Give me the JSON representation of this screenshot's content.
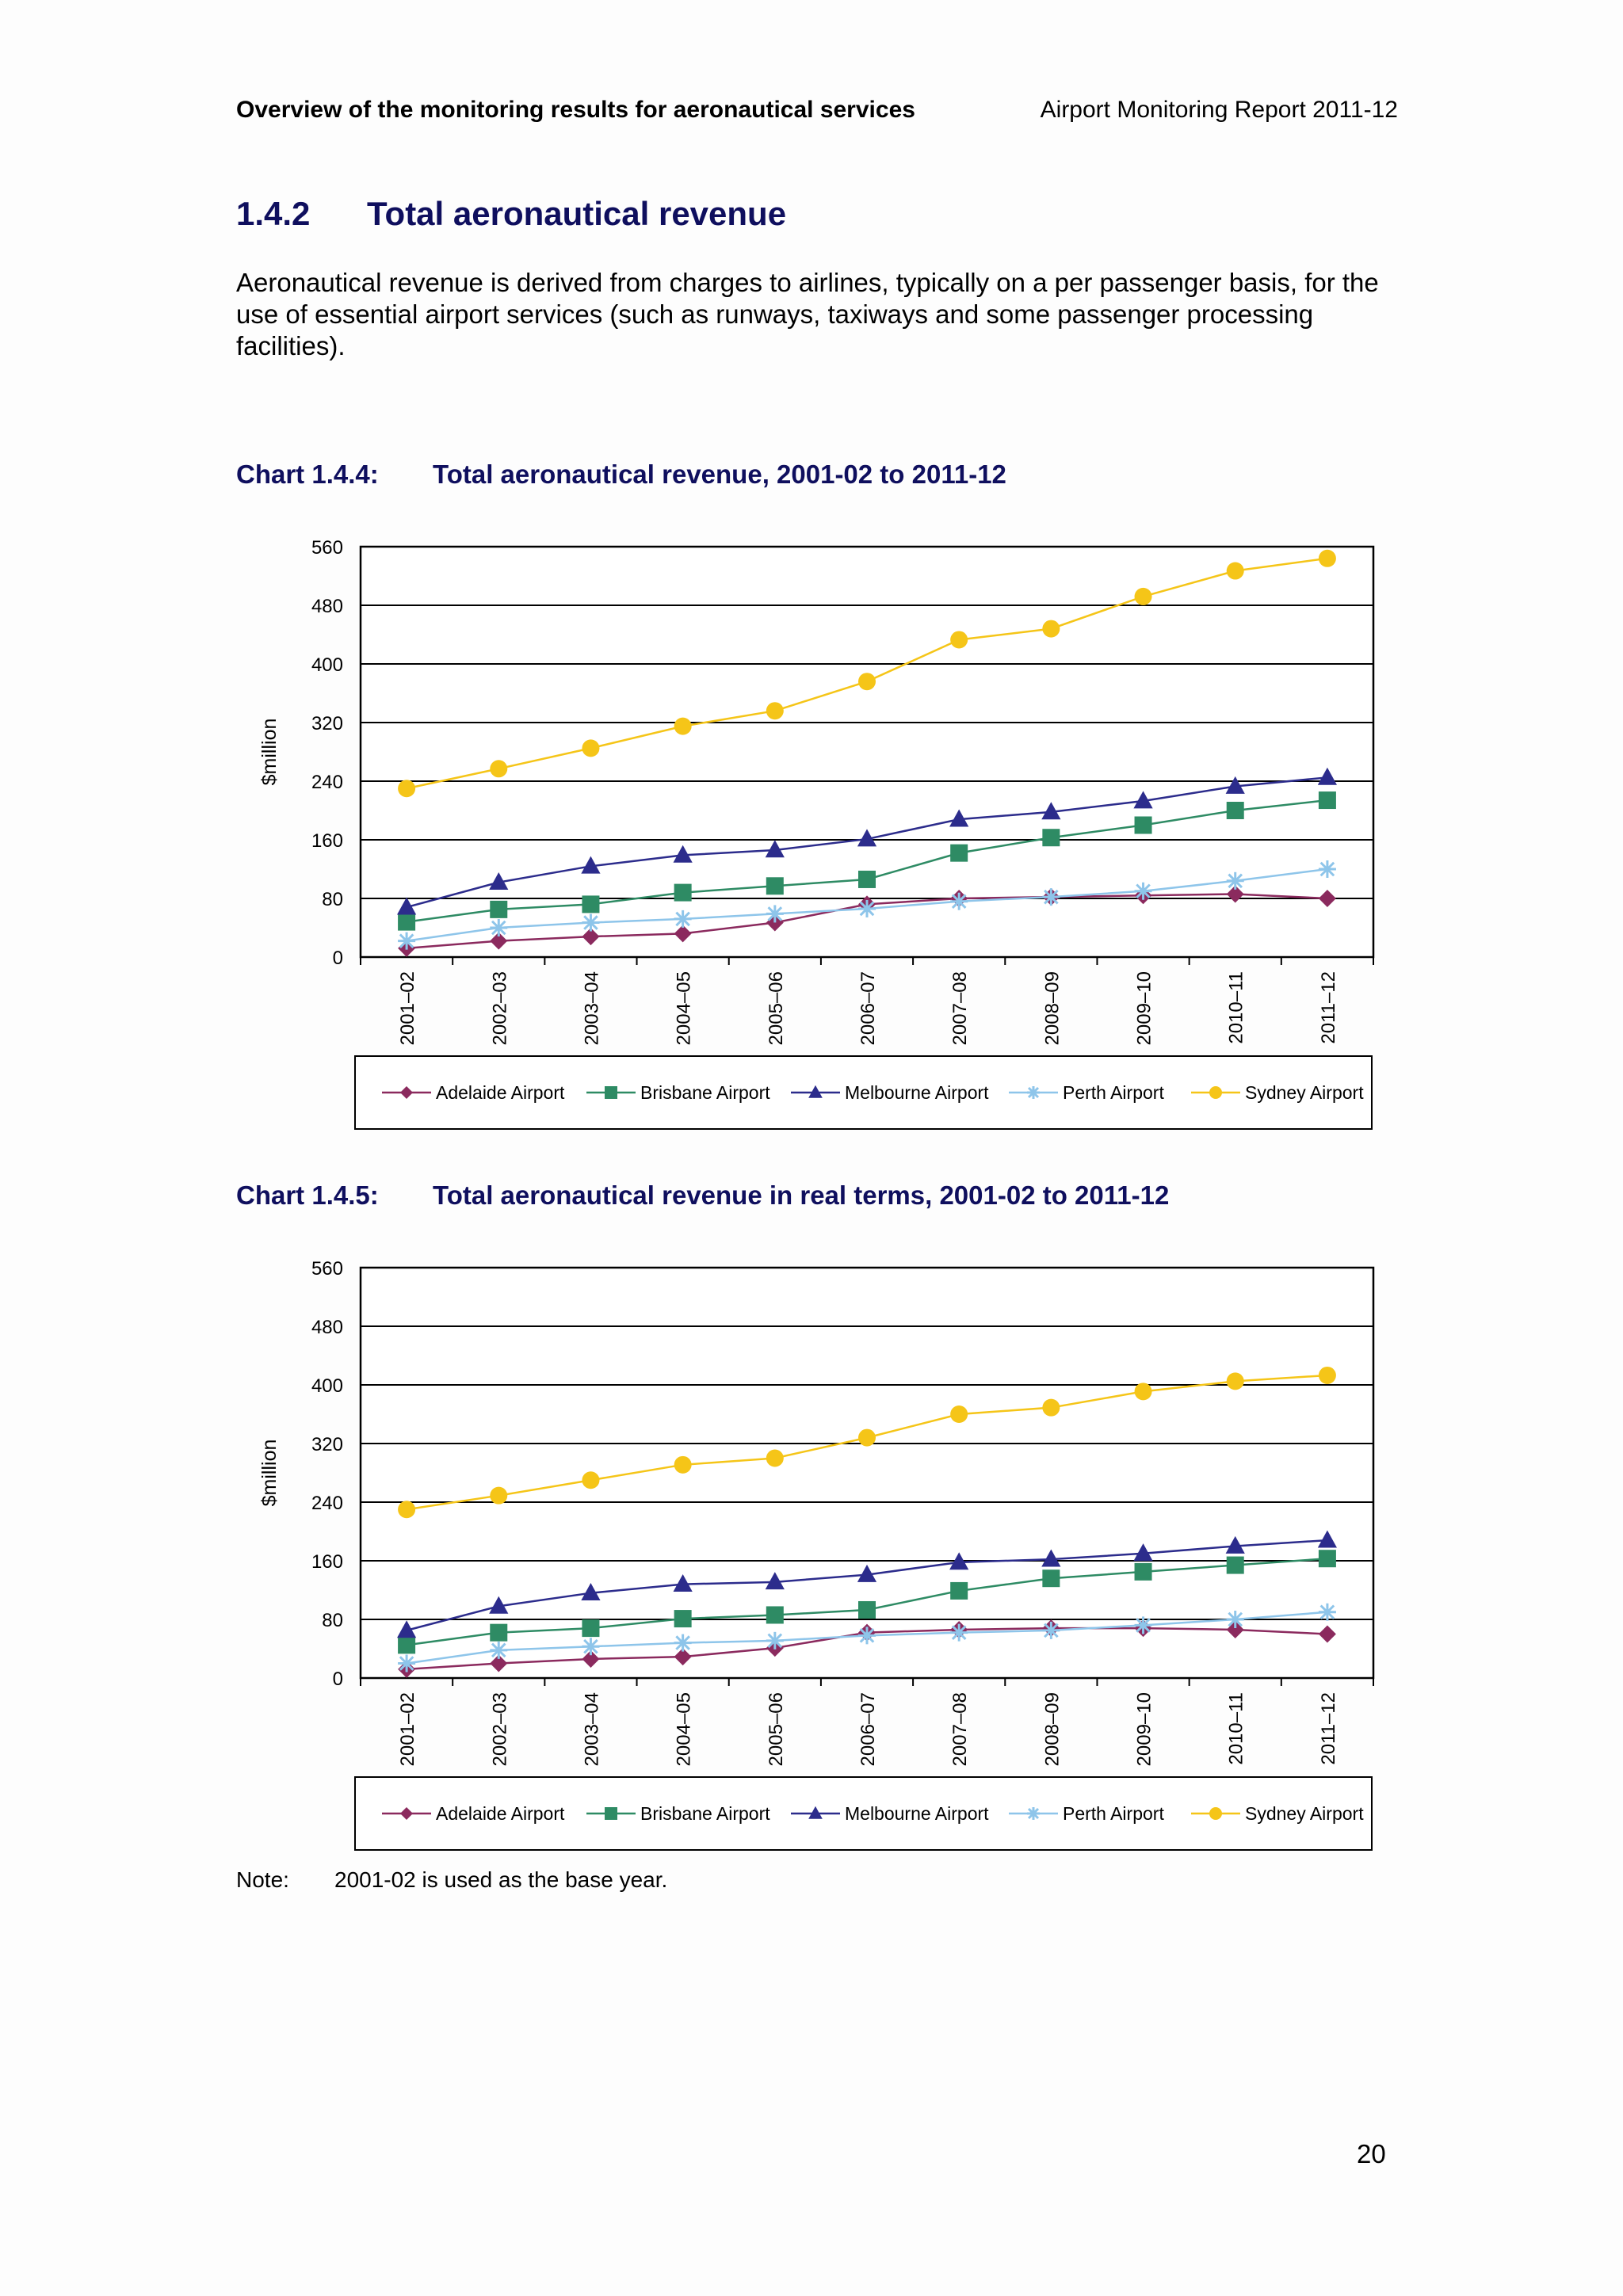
{
  "header": {
    "left": "Overview of the monitoring results for aeronautical services",
    "right": "Airport Monitoring Report 2011-12"
  },
  "section": {
    "number": "1.4.2",
    "title": "Total aeronautical revenue"
  },
  "intro": "Aeronautical revenue is derived from charges to airlines, typically on a per passenger basis, for the use of essential airport services (such as runways, taxiways and some passenger processing facilities).",
  "charts": [
    {
      "number": "Chart 1.4.4:",
      "title": "Total aeronautical revenue, 2001-02 to 2011-12"
    },
    {
      "number": "Chart 1.4.5:",
      "title": "Total aeronautical revenue in real terms, 2001-02 to 2011-12"
    }
  ],
  "note": {
    "label": "Note:",
    "text": "2001-02 is used as the base year."
  },
  "page_number": "20",
  "chart_data": [
    {
      "type": "line",
      "ylabel": "$million",
      "ylim": [
        0,
        560
      ],
      "yticks": [
        0,
        80,
        160,
        240,
        320,
        400,
        480,
        560
      ],
      "grid": true,
      "legend": "bottom",
      "categories": [
        "2001–02",
        "2002–03",
        "2003–04",
        "2004–05",
        "2005–06",
        "2006–07",
        "2007–08",
        "2008–09",
        "2009–10",
        "2010–11",
        "2011–12"
      ],
      "series": [
        {
          "name": "Adelaide Airport",
          "color": "#8b2a5e",
          "marker": "diamond",
          "values": [
            12,
            22,
            28,
            32,
            47,
            72,
            80,
            82,
            84,
            86,
            80
          ]
        },
        {
          "name": "Brisbane Airport",
          "color": "#2e8b64",
          "marker": "square",
          "values": [
            48,
            65,
            72,
            88,
            97,
            106,
            142,
            163,
            180,
            200,
            214
          ]
        },
        {
          "name": "Melbourne Airport",
          "color": "#2c2c8c",
          "marker": "triangle",
          "values": [
            68,
            102,
            124,
            139,
            146,
            161,
            188,
            198,
            213,
            233,
            245
          ]
        },
        {
          "name": "Perth Airport",
          "color": "#8ec5ea",
          "marker": "star",
          "values": [
            22,
            40,
            47,
            52,
            59,
            66,
            76,
            82,
            90,
            104,
            120
          ]
        },
        {
          "name": "Sydney Airport",
          "color": "#f5c518",
          "marker": "circle",
          "values": [
            230,
            257,
            285,
            315,
            336,
            376,
            433,
            448,
            492,
            527,
            544
          ]
        }
      ]
    },
    {
      "type": "line",
      "ylabel": "$million",
      "ylim": [
        0,
        560
      ],
      "yticks": [
        0,
        80,
        160,
        240,
        320,
        400,
        480,
        560
      ],
      "grid": true,
      "legend": "bottom",
      "categories": [
        "2001–02",
        "2002–03",
        "2003–04",
        "2004–05",
        "2005–06",
        "2006–07",
        "2007–08",
        "2008–09",
        "2009–10",
        "2010–11",
        "2011–12"
      ],
      "series": [
        {
          "name": "Adelaide Airport",
          "color": "#8b2a5e",
          "marker": "diamond",
          "values": [
            12,
            20,
            26,
            29,
            41,
            62,
            66,
            68,
            68,
            66,
            60
          ]
        },
        {
          "name": "Brisbane Airport",
          "color": "#2e8b64",
          "marker": "square",
          "values": [
            45,
            62,
            68,
            81,
            86,
            93,
            119,
            136,
            145,
            154,
            163
          ]
        },
        {
          "name": "Melbourne Airport",
          "color": "#2c2c8c",
          "marker": "triangle",
          "values": [
            65,
            98,
            116,
            128,
            131,
            141,
            158,
            162,
            170,
            180,
            188
          ]
        },
        {
          "name": "Perth Airport",
          "color": "#8ec5ea",
          "marker": "star",
          "values": [
            20,
            38,
            43,
            48,
            51,
            58,
            62,
            65,
            72,
            80,
            90
          ]
        },
        {
          "name": "Sydney Airport",
          "color": "#f5c518",
          "marker": "circle",
          "values": [
            230,
            249,
            270,
            291,
            300,
            328,
            360,
            369,
            391,
            405,
            413
          ]
        }
      ]
    }
  ]
}
